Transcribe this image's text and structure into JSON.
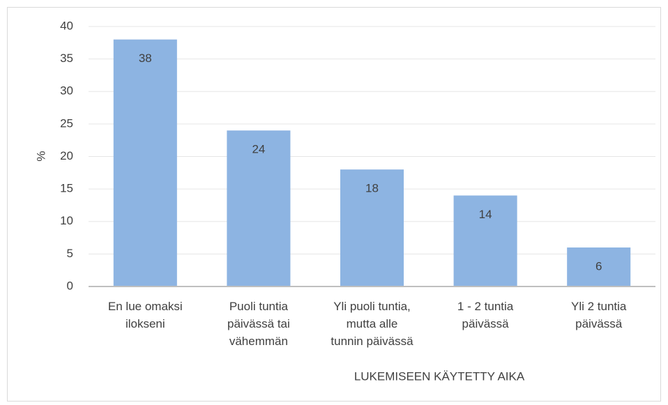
{
  "chart_data": {
    "type": "bar",
    "categories": [
      "En lue omaksi\nilokseni",
      "Puoli tuntia\npäivässä tai\nvähemmän",
      "Yli puoli tuntia,\nmutta alle\ntunnin päivässä",
      "1 - 2 tuntia\npäivässä",
      "Yli 2 tuntia\npäivässä"
    ],
    "values": [
      38,
      24,
      18,
      14,
      6
    ],
    "color": "#8db4e2",
    "xlabel": "LUKEMISEEN KÄYTETTY AIKA",
    "ylabel": "%",
    "ylim": [
      0,
      40
    ],
    "yticks": [
      0,
      5,
      10,
      15,
      20,
      25,
      30,
      35,
      40
    ],
    "grid": true
  }
}
